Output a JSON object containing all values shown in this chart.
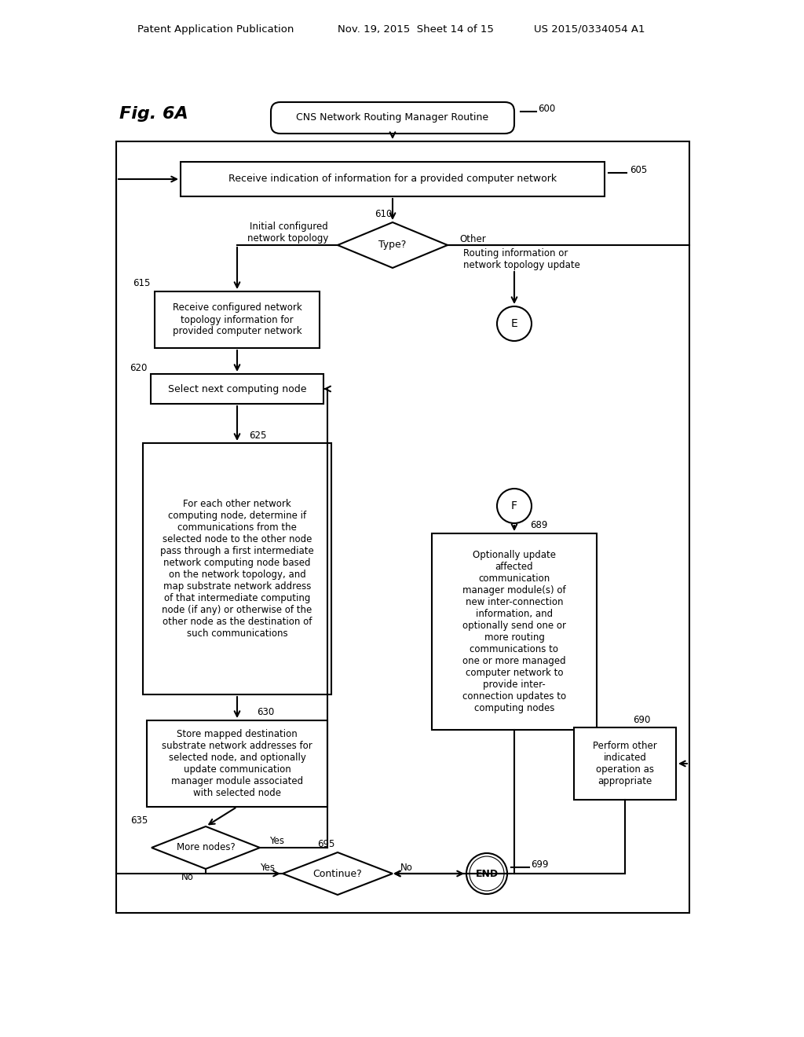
{
  "bg_color": "#ffffff",
  "header_left": "Patent Application Publication",
  "header_mid": "Nov. 19, 2015  Sheet 14 of 15",
  "header_right": "US 2015/0334054 A1",
  "fig_label": "Fig. 6A",
  "title_node": "CNS Network Routing Manager Routine",
  "n600": "600",
  "n605": "605",
  "n610": "610",
  "n615": "615",
  "n620": "620",
  "n625": "625",
  "n630": "630",
  "n635": "635",
  "n689": "689",
  "n690": "690",
  "n695": "695",
  "n699": "699",
  "box605_text": "Receive indication of information for a provided computer network",
  "diamond610_text": "Type?",
  "left_label_610": "Initial configured\nnetwork topology",
  "right_label_610": "Other",
  "box615_text": "Receive configured network\ntopology information for\nprovided computer network",
  "routing_label": "Routing information or\nnetwork topology update",
  "circle_E": "E",
  "box620_text": "Select next computing node",
  "box625_text": "For each other network\ncomputing node, determine if\ncommunications from the\nselected node to the other node\npass through a first intermediate\nnetwork computing node based\non the network topology, and\nmap substrate network address\nof that intermediate computing\nnode (if any) or otherwise of the\nother node as the destination of\nsuch communications",
  "circle_F": "F",
  "box689_text": "Optionally update\naffected\ncommunication\nmanager module(s) of\nnew inter-connection\ninformation, and\noptionally send one or\nmore routing\ncommunications to\none or more managed\ncomputer network to\nprovide inter-\nconnection updates to\ncomputing nodes",
  "box630_text": "Store mapped destination\nsubstrate network addresses for\nselected node, and optionally\nupdate communication\nmanager module associated\nwith selected node",
  "diamond635_text": "More nodes?",
  "yes635": "Yes",
  "no635": "No",
  "box690_text": "Perform other\nindicated\noperation as\nappropriate",
  "diamond695_text": "Continue?",
  "yes695": "Yes",
  "no695": "No",
  "end_text": "END",
  "lc": "#000000",
  "tc": "#000000",
  "bc": "#ffffff"
}
